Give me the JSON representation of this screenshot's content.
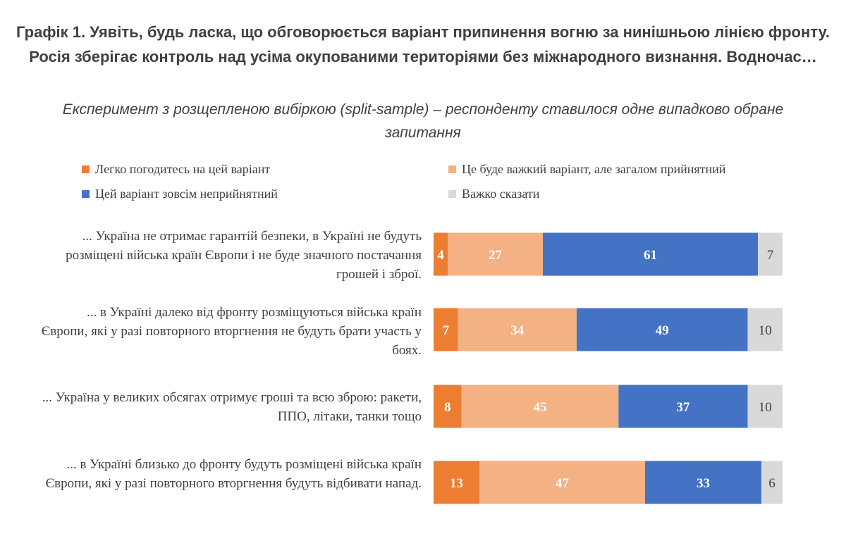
{
  "chart_data": {
    "type": "bar",
    "orientation": "horizontal",
    "stacked": true,
    "title": "Графік 1. Уявіть, будь ласка, що обговорюється варіант припинення вогню за нинішньою лінією фронту. Росія зберігає контроль над усіма окупованими територіями без міжнародного визнання. Водночас…",
    "subtitle": "Експеримент з розщепленою вибіркою (split-sample) – респонденту ставилося одне випадково обране запитання",
    "categories": [
      "... Україна не отримає гарантій безпеки, в Україні не будуть розміщені війська країн Європи і не буде значного постачання грошей і зброї.",
      "... в Україні далеко від фронту розміщуються війська країн Європи, які у разі повторного вторгнення не будуть брати участь у боях.",
      "... Україна у великих обсягах отримує гроші та всю зброю: ракети, ППО, літаки, танки тощо",
      "... в Україні близько до фронту будуть розміщені війська країн Європи, які у разі повторного вторгнення будуть відбивати напад."
    ],
    "series": [
      {
        "name": "Легко погодитесь на цей варіант",
        "color": "#ED7D31",
        "label_color": "#ffffff",
        "values": [
          4,
          7,
          8,
          13
        ]
      },
      {
        "name": "Це буде важкий варіант, але загалом прийнятний",
        "color": "#F4B183",
        "label_color": "#ffffff",
        "values": [
          27,
          34,
          45,
          47
        ]
      },
      {
        "name": "Цей варіант зовсім неприйнятний",
        "color": "#4472C4",
        "label_color": "#ffffff",
        "values": [
          61,
          49,
          37,
          33
        ]
      },
      {
        "name": "Важко сказати",
        "color": "#D9D9D9",
        "label_color": "#404040",
        "values": [
          7,
          10,
          10,
          6
        ]
      }
    ],
    "xlim": [
      0,
      100
    ],
    "grid": false,
    "legend_position": "top"
  }
}
